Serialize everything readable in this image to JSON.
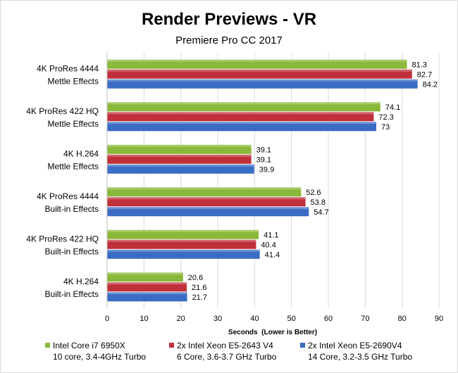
{
  "chart_data": {
    "type": "bar",
    "orientation": "horizontal",
    "title": "Render Previews - VR",
    "subtitle": "Premiere Pro CC 2017",
    "xlabel": "Seconds  (Lower is Better)",
    "xlim": [
      0,
      90
    ],
    "xticks": [
      "0",
      "10",
      "20",
      "30",
      "40",
      "50",
      "60",
      "70",
      "80",
      "90"
    ],
    "grid": true,
    "legend_position": "bottom",
    "categories": [
      [
        "4K ProRes 4444",
        "Mettle Effects"
      ],
      [
        "4K ProRes 422 HQ",
        "Mettle Effects"
      ],
      [
        "4K H.264",
        "Mettle Effects"
      ],
      [
        "4K ProRes 4444",
        "Built-in Effects"
      ],
      [
        "4K ProRes 422 HQ",
        "Built-in Effects"
      ],
      [
        "4K H.264",
        "Built-in Effects"
      ]
    ],
    "series": [
      {
        "name": "Intel Core i7 6950X",
        "sub": "10 core, 3.4-4GHz Turbo",
        "color": "#8ab83a",
        "values": [
          81.3,
          74.1,
          39.1,
          52.6,
          41.1,
          20.6
        ],
        "labels": [
          "81.3",
          "74.1",
          "39.1",
          "52.6",
          "41.1",
          "20.6"
        ]
      },
      {
        "name": "2x Intel Xeon E5-2643 V4",
        "sub": "6 Core, 3.6-3.7 GHz Turbo",
        "color": "#c0303a",
        "values": [
          82.7,
          72.3,
          39.1,
          53.8,
          40.4,
          21.6
        ],
        "labels": [
          "82.7",
          "72.3",
          "39.1",
          "53.8",
          "40.4",
          "21.6"
        ]
      },
      {
        "name": "2x Intel Xeon E5-2690V4",
        "sub": "14 Core, 3.2-3.5 GHz Turbo",
        "color": "#3a6cc4",
        "values": [
          84.2,
          73.0,
          39.9,
          54.7,
          41.4,
          21.7
        ],
        "labels": [
          "84.2",
          "73",
          "39.9",
          "54.7",
          "41.4",
          "21.7"
        ]
      }
    ]
  }
}
